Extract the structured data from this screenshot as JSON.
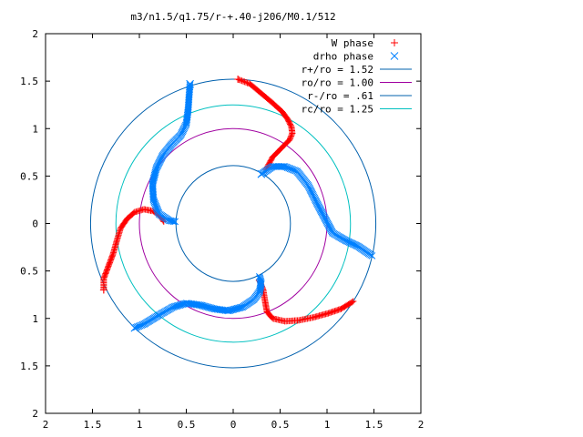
{
  "chart_data": {
    "type": "scatter",
    "title": "m3/n1.5/q1.75/r-+.40-j206/M0.1/512",
    "xlim": [
      -2,
      2
    ],
    "ylim": [
      -2,
      2
    ],
    "x_ticks": [
      "2",
      "1.5",
      "1",
      "0.5",
      "0",
      "0.5",
      "1",
      "1.5",
      "2"
    ],
    "y_ticks": [
      "2",
      "1.5",
      "1",
      "0.5",
      "0",
      "0.5",
      "1",
      "1.5",
      "2"
    ],
    "grid": false,
    "legend_position": "top-right",
    "series": [
      {
        "name": "W phase",
        "marker": "plus",
        "color": "#ff0000",
        "curves": [
          [
            [
              0.05,
              1.52
            ],
            [
              0.18,
              1.47
            ],
            [
              0.3,
              1.37
            ],
            [
              0.42,
              1.27
            ],
            [
              0.52,
              1.18
            ],
            [
              0.58,
              1.1
            ],
            [
              0.62,
              1.02
            ],
            [
              0.63,
              0.95
            ],
            [
              0.6,
              0.88
            ],
            [
              0.52,
              0.8
            ],
            [
              0.42,
              0.7
            ],
            [
              0.35,
              0.57
            ]
          ],
          [
            [
              -1.38,
              -0.7
            ],
            [
              -1.38,
              -0.58
            ],
            [
              -1.33,
              -0.45
            ],
            [
              -1.28,
              -0.32
            ],
            [
              -1.24,
              -0.18
            ],
            [
              -1.2,
              -0.05
            ],
            [
              -1.13,
              0.05
            ],
            [
              -1.05,
              0.12
            ],
            [
              -0.95,
              0.15
            ],
            [
              -0.85,
              0.13
            ],
            [
              -0.78,
              0.08
            ],
            [
              -0.74,
              0.02
            ]
          ],
          [
            [
              0.28,
              -0.6
            ],
            [
              0.32,
              -0.7
            ],
            [
              0.34,
              -0.82
            ],
            [
              0.36,
              -0.93
            ],
            [
              0.42,
              -1.0
            ],
            [
              0.55,
              -1.03
            ],
            [
              0.7,
              -1.02
            ],
            [
              0.85,
              -0.99
            ],
            [
              1.0,
              -0.95
            ],
            [
              1.15,
              -0.9
            ],
            [
              1.28,
              -0.82
            ]
          ]
        ]
      },
      {
        "name": "drho phase",
        "marker": "cross",
        "color": "#0080ff",
        "curves": [
          [
            [
              -0.46,
              1.47
            ],
            [
              -0.47,
              1.35
            ],
            [
              -0.48,
              1.2
            ],
            [
              -0.5,
              1.05
            ],
            [
              -0.56,
              0.93
            ],
            [
              -0.66,
              0.83
            ],
            [
              -0.75,
              0.72
            ],
            [
              -0.82,
              0.58
            ],
            [
              -0.86,
              0.42
            ],
            [
              -0.85,
              0.25
            ],
            [
              -0.79,
              0.1
            ],
            [
              -0.68,
              0.03
            ],
            [
              -0.62,
              0.02
            ]
          ],
          [
            [
              0.3,
              0.52
            ],
            [
              0.42,
              0.6
            ],
            [
              0.55,
              0.6
            ],
            [
              0.68,
              0.55
            ],
            [
              0.8,
              0.4
            ],
            [
              0.9,
              0.2
            ],
            [
              0.98,
              0.05
            ],
            [
              1.06,
              -0.1
            ],
            [
              1.2,
              -0.18
            ],
            [
              1.33,
              -0.24
            ],
            [
              1.48,
              -0.34
            ]
          ],
          [
            [
              -1.05,
              -1.1
            ],
            [
              -0.95,
              -1.06
            ],
            [
              -0.8,
              -0.97
            ],
            [
              -0.64,
              -0.88
            ],
            [
              -0.5,
              -0.84
            ],
            [
              -0.35,
              -0.86
            ],
            [
              -0.2,
              -0.9
            ],
            [
              -0.05,
              -0.92
            ],
            [
              0.1,
              -0.88
            ],
            [
              0.22,
              -0.8
            ],
            [
              0.28,
              -0.72
            ],
            [
              0.3,
              -0.63
            ],
            [
              0.28,
              -0.56
            ]
          ]
        ]
      }
    ],
    "circles": [
      {
        "name": "r+/ro = 1.52",
        "radius": 1.52,
        "color": "#0060ad"
      },
      {
        "name": "ro/ro = 1.00",
        "radius": 1.0,
        "color": "#a000a0"
      },
      {
        "name": "r-/ro = .61",
        "radius": 0.61,
        "color": "#0060ad"
      },
      {
        "name": "rc/ro = 1.25",
        "radius": 1.25,
        "color": "#00c0c0"
      }
    ]
  }
}
